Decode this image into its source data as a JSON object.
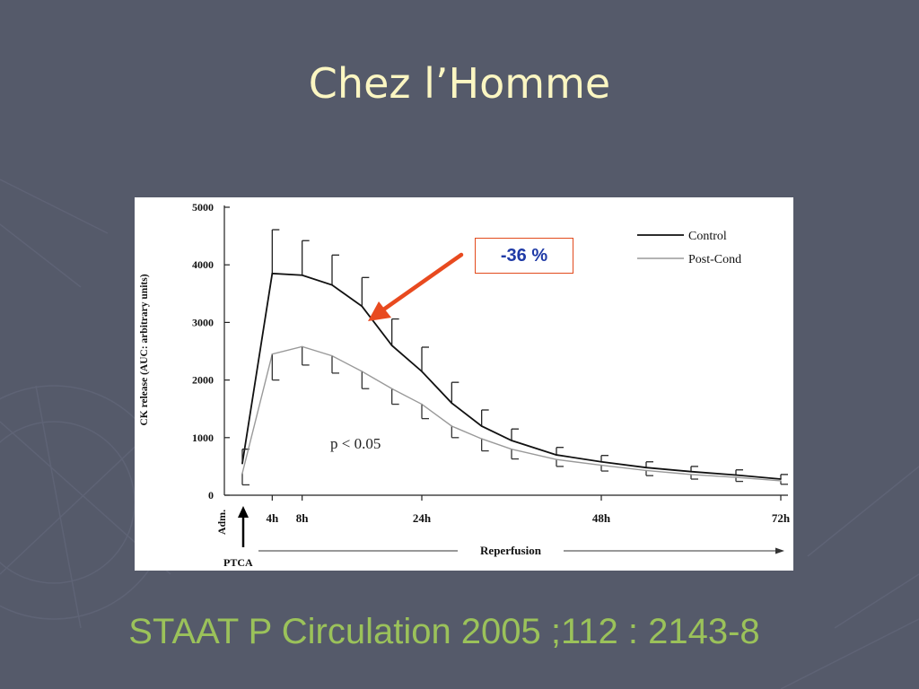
{
  "slide": {
    "title": "Chez l’Homme",
    "citation": "STAAT P Circulation 2005 ;112 : 2143-8",
    "annotation": "-36 %",
    "colors": {
      "background": "#555a6a",
      "title": "#fbf6c2",
      "citation": "#9bc25a",
      "annotation_text": "#1f3aa6",
      "arrow": "#e84a1f"
    }
  },
  "chart_data": {
    "type": "line",
    "title": "",
    "ylabel": "CK release (AUC: arbitrary units)",
    "xlabel": "Reperfusion",
    "ylim": [
      0,
      5000
    ],
    "xlim": [
      0,
      72
    ],
    "yticks": [
      0,
      1000,
      2000,
      3000,
      4000,
      5000
    ],
    "xtick_labels": [
      {
        "x": 4,
        "label": "4h"
      },
      {
        "x": 8,
        "label": "8h"
      },
      {
        "x": 24,
        "label": "24h"
      },
      {
        "x": 48,
        "label": "48h"
      },
      {
        "x": 72,
        "label": "72h"
      }
    ],
    "adm_label": "Adm.",
    "ptca_label": "PTCA",
    "p_value": "p < 0.05",
    "legend_position": "top-right",
    "grid": false,
    "series": [
      {
        "name": "Control",
        "color": "#111111",
        "x": [
          0,
          4,
          8,
          12,
          16,
          20,
          24,
          28,
          32,
          36,
          42,
          48,
          54,
          60,
          66,
          72
        ],
        "y": [
          550,
          3850,
          3820,
          3650,
          3280,
          2600,
          2150,
          1600,
          1200,
          950,
          700,
          580,
          480,
          410,
          350,
          280
        ],
        "err": [
          250,
          760,
          600,
          520,
          500,
          460,
          420,
          360,
          280,
          200,
          130,
          110,
          100,
          90,
          90,
          80
        ]
      },
      {
        "name": "Post-Cond",
        "color": "#9a9a9a",
        "x": [
          0,
          4,
          8,
          12,
          16,
          20,
          24,
          28,
          32,
          36,
          42,
          48,
          54,
          60,
          66,
          72
        ],
        "y": [
          380,
          2450,
          2580,
          2420,
          2150,
          1850,
          1580,
          1200,
          980,
          800,
          620,
          520,
          430,
          360,
          310,
          250
        ],
        "err": [
          200,
          450,
          320,
          300,
          300,
          270,
          250,
          200,
          210,
          170,
          120,
          100,
          90,
          80,
          70,
          60
        ]
      }
    ]
  }
}
